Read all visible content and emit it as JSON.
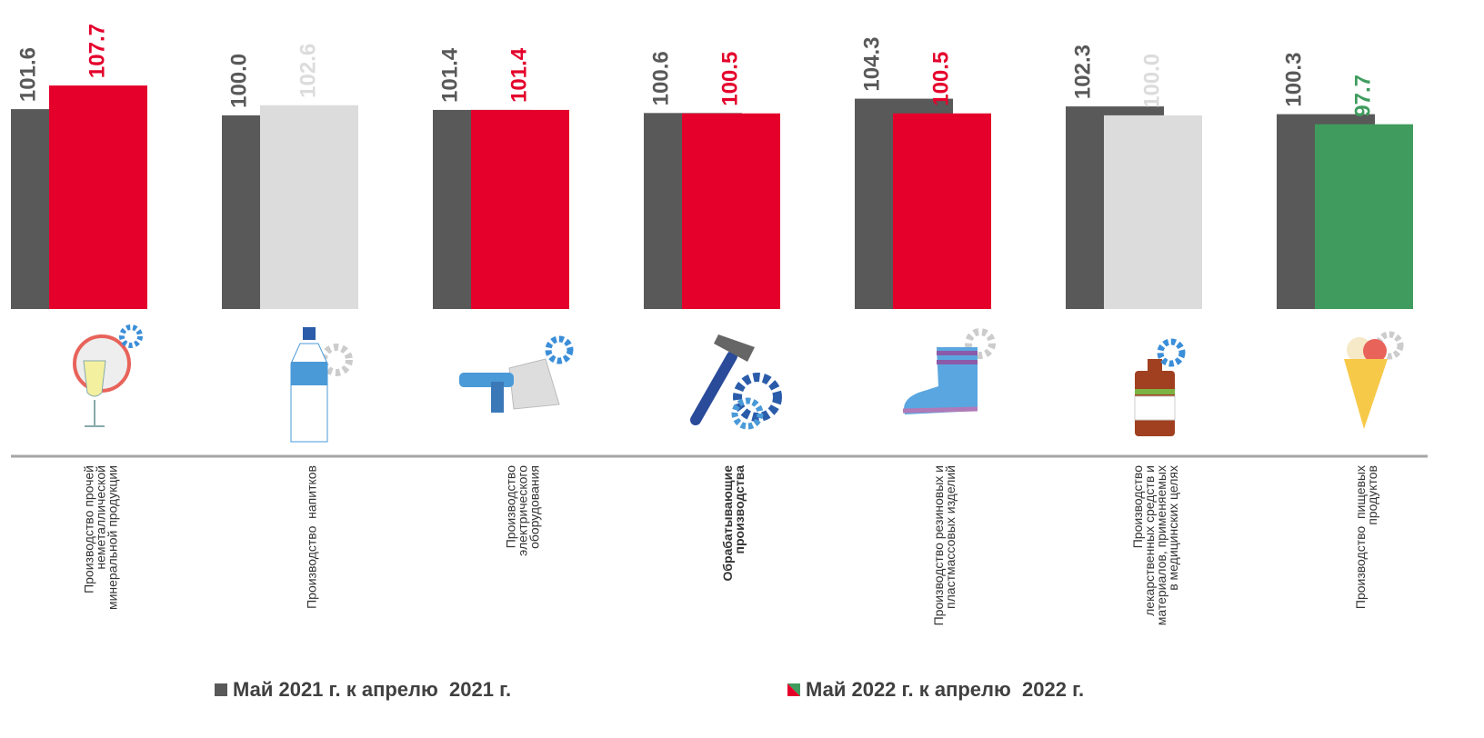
{
  "chart_data": {
    "type": "bar",
    "categories": [
      [
        "Производство прочей",
        "неметаллической",
        "минеральной продукции"
      ],
      [
        "Производство  напитков"
      ],
      [
        "Производство",
        "электрического",
        "оборудования"
      ],
      [
        "Обрабатывающие",
        "производства"
      ],
      [
        "Производство резиновых и",
        "пластмассовых изделий"
      ],
      [
        "Производство",
        "лекарственных средств и",
        "материалов, применяемых",
        "в медицинских целях"
      ],
      [
        "Производство  пищевых",
        "продуктов"
      ]
    ],
    "highlight_index": 3,
    "series": [
      {
        "name": "Май 2021 г. к апрелю  2021 г.",
        "color": "#595959",
        "values": [
          101.6,
          100.0,
          101.4,
          100.6,
          104.3,
          102.3,
          100.3
        ],
        "value_labels": [
          "101.6",
          "100.0",
          "101.4",
          "100.6",
          "104.3",
          "102.3",
          "100.3"
        ]
      },
      {
        "name": "Май 2022 г. к апрелю  2022 г.",
        "colors": [
          "#e4002b",
          "#dcdcdc",
          "#e4002b",
          "#e4002b",
          "#e4002b",
          "#dcdcdc",
          "#3f9c5e"
        ],
        "values": [
          107.7,
          102.6,
          101.4,
          100.5,
          100.5,
          100.0,
          97.7
        ],
        "value_labels": [
          "107.7",
          "102.6",
          "101.4",
          "100.5",
          "100.5",
          "100.0",
          "97.7"
        ]
      }
    ],
    "ylim": [
      50,
      115
    ]
  }
}
